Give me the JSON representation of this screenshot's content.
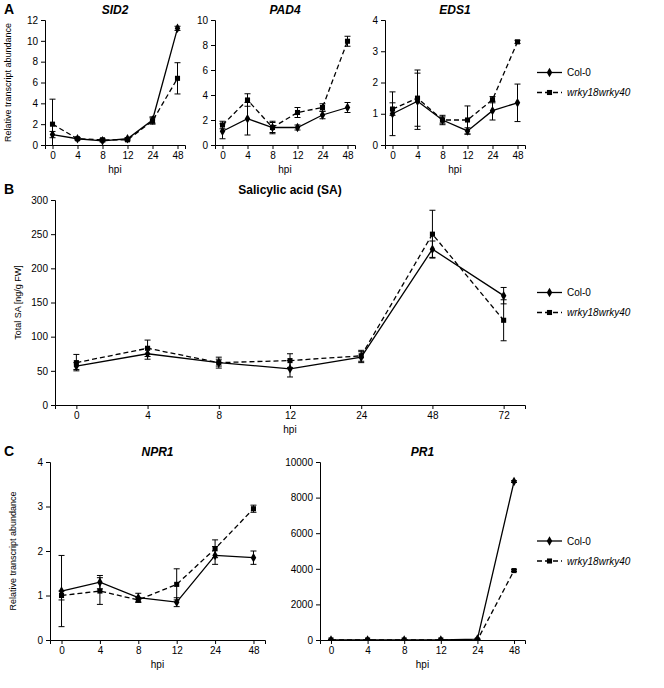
{
  "chart_data": [
    {
      "type": "line",
      "panel_label": "A",
      "title": "SID2",
      "x_label": "hpi",
      "y_label": "Relative transcript abundance",
      "categories": [
        "0",
        "4",
        "8",
        "12",
        "24",
        "48"
      ],
      "ylim": [
        0,
        12
      ],
      "yticks": [
        0,
        2,
        4,
        6,
        8,
        10,
        12
      ],
      "series": [
        {
          "color": "#000000",
          "marker": "diamond",
          "line_style": "solid",
          "values": [
            1.0,
            0.6,
            0.4,
            0.6,
            2.4,
            11.2
          ],
          "errors": [
            0.3,
            0.1,
            0.1,
            0.1,
            0.3,
            0.2
          ]
        },
        {
          "color": "#000000",
          "marker": "square",
          "line_style": "dashed",
          "values": [
            2.0,
            0.6,
            0.5,
            0.5,
            2.3,
            6.4
          ],
          "errors": [
            2.4,
            0.1,
            0.1,
            0.1,
            0.3,
            1.5
          ]
        }
      ]
    },
    {
      "type": "line",
      "title": "PAD4",
      "x_label": "hpi",
      "categories": [
        "0",
        "4",
        "8",
        "12",
        "24",
        "48"
      ],
      "ylim": [
        0,
        10
      ],
      "yticks": [
        0,
        2,
        4,
        6,
        8,
        10
      ],
      "series": [
        {
          "color": "#000000",
          "marker": "diamond",
          "line_style": "solid",
          "values": [
            1.1,
            2.1,
            1.4,
            1.4,
            2.4,
            3.0
          ],
          "errors": [
            0.6,
            1.3,
            0.5,
            0.2,
            0.3,
            0.4
          ]
        },
        {
          "color": "#000000",
          "marker": "square",
          "line_style": "dashed",
          "values": [
            1.6,
            3.6,
            1.4,
            2.6,
            3.0,
            8.3
          ],
          "errors": [
            0.3,
            0.5,
            0.4,
            0.4,
            0.3,
            0.4
          ]
        }
      ]
    },
    {
      "type": "line",
      "title": "EDS1",
      "x_label": "hpi",
      "legend": "right",
      "categories": [
        "0",
        "4",
        "8",
        "12",
        "24",
        "48"
      ],
      "ylim": [
        0,
        4
      ],
      "yticks": [
        0,
        1,
        2,
        3,
        4
      ],
      "series": [
        {
          "name": "Col-0",
          "color": "#000000",
          "marker": "diamond",
          "line_style": "solid",
          "values": [
            1.0,
            1.4,
            0.8,
            0.45,
            1.1,
            1.35
          ],
          "errors": [
            0.7,
            0.9,
            0.15,
            0.1,
            0.3,
            0.6
          ]
        },
        {
          "name": "wrky18wrky40",
          "color": "#000000",
          "marker": "square",
          "line_style": "dashed",
          "values": [
            1.15,
            1.5,
            0.8,
            0.8,
            1.45,
            3.3
          ],
          "errors": [
            0.2,
            0.9,
            0.1,
            0.45,
            0.1,
            0.05
          ]
        }
      ]
    },
    {
      "type": "line",
      "panel_label": "B",
      "title": "Salicylic acid (SA)",
      "x_label": "hpi",
      "y_label": "Total SA [ng/g FW]",
      "legend": "right",
      "categories": [
        "0",
        "4",
        "8",
        "12",
        "24",
        "48",
        "72"
      ],
      "ylim": [
        0,
        300
      ],
      "yticks": [
        0,
        50,
        100,
        150,
        200,
        250,
        300
      ],
      "series": [
        {
          "name": "Col-0",
          "color": "#000000",
          "marker": "diamond",
          "line_style": "solid",
          "values": [
            57,
            75,
            62,
            53,
            70,
            228,
            160
          ],
          "errors": [
            5,
            8,
            5,
            12,
            8,
            12,
            12
          ]
        },
        {
          "name": "wrky18wrky40",
          "color": "#000000",
          "marker": "square",
          "line_style": "dashed",
          "values": [
            62,
            83,
            62,
            65,
            72,
            250,
            124
          ],
          "errors": [
            12,
            12,
            8,
            10,
            8,
            35,
            30
          ]
        }
      ]
    },
    {
      "type": "line",
      "panel_label": "C",
      "title": "NPR1",
      "x_label": "hpi",
      "y_label": "Relative transcript abundance",
      "categories": [
        "0",
        "4",
        "8",
        "12",
        "24",
        "48"
      ],
      "ylim": [
        0,
        4
      ],
      "yticks": [
        0,
        1,
        2,
        3,
        4
      ],
      "series": [
        {
          "color": "#000000",
          "marker": "diamond",
          "line_style": "solid",
          "values": [
            1.1,
            1.3,
            0.95,
            0.85,
            1.9,
            1.85
          ],
          "errors": [
            0.8,
            0.15,
            0.1,
            0.1,
            0.2,
            0.15
          ]
        },
        {
          "color": "#000000",
          "marker": "square",
          "line_style": "dashed",
          "values": [
            1.0,
            1.1,
            0.9,
            1.25,
            2.05,
            2.95
          ],
          "errors": [
            0.1,
            0.3,
            0.05,
            0.35,
            0.2,
            0.08
          ]
        }
      ]
    },
    {
      "type": "line",
      "title": "PR1",
      "x_label": "hpi",
      "legend": "right",
      "categories": [
        "0",
        "4",
        "8",
        "12",
        "24",
        "48"
      ],
      "ylim": [
        0,
        10000
      ],
      "yticks": [
        0,
        2000,
        4000,
        6000,
        8000,
        10000
      ],
      "series": [
        {
          "name": "Col-0",
          "color": "#000000",
          "marker": "diamond",
          "line_style": "solid",
          "values": [
            0,
            0,
            0,
            0,
            50,
            8900
          ],
          "errors": [
            0,
            0,
            0,
            0,
            10,
            50
          ]
        },
        {
          "name": "wrky18wrky40",
          "color": "#000000",
          "marker": "square",
          "line_style": "dashed",
          "values": [
            0,
            0,
            0,
            0,
            0,
            3900
          ],
          "errors": [
            0,
            0,
            0,
            0,
            0,
            50
          ]
        }
      ]
    }
  ]
}
